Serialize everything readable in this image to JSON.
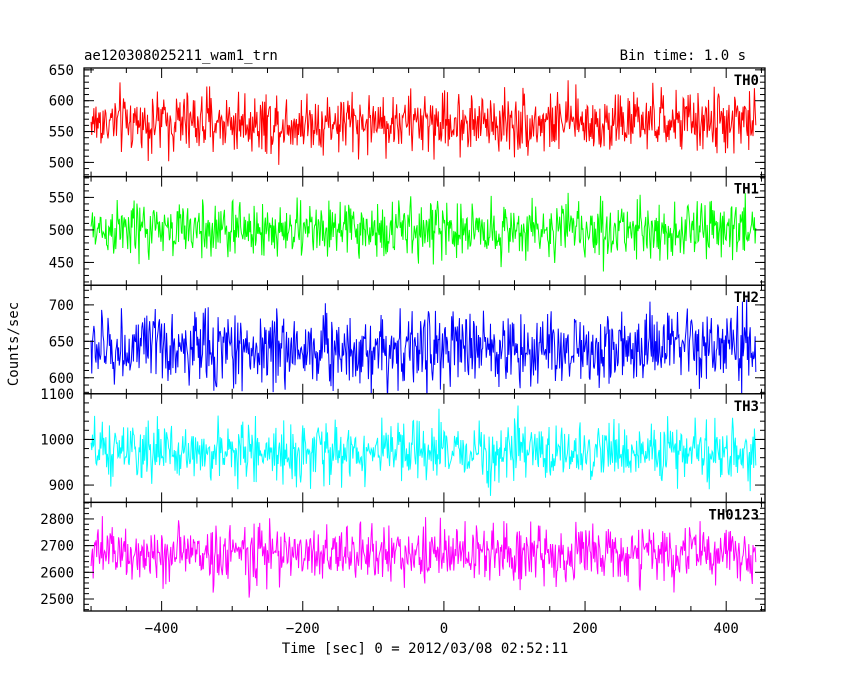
{
  "chart_data": {
    "type": "line",
    "title_left": "ae120308025211_wam1_trn",
    "title_right": "Bin time: 1.0 s",
    "xlabel": "Time [sec] 0 = 2012/03/08 02:52:11",
    "ylabel": "Counts/sec",
    "xlim": [
      -510,
      455
    ],
    "data_x_range": [
      -500,
      442
    ],
    "x_ticks": [
      -400,
      -200,
      0,
      200,
      400
    ],
    "x_minor_step": 50,
    "grid": false,
    "panels": [
      {
        "name": "TH0",
        "color": "#ff0000",
        "ylim": [
          477,
          653
        ],
        "y_ticks": [
          500,
          550,
          600,
          650
        ],
        "y_minor_step": 10,
        "mean": 565,
        "amplitude": 25
      },
      {
        "name": "TH1",
        "color": "#00ff00",
        "ylim": [
          415,
          582
        ],
        "y_ticks": [
          450,
          500,
          550
        ],
        "y_minor_step": 10,
        "mean": 500,
        "amplitude": 22
      },
      {
        "name": "TH2",
        "color": "#0000ff",
        "ylim": [
          578,
          727
        ],
        "y_ticks": [
          600,
          650,
          700
        ],
        "y_minor_step": 10,
        "mean": 640,
        "amplitude": 26
      },
      {
        "name": "TH3",
        "color": "#00ffff",
        "ylim": [
          862,
          1100
        ],
        "y_ticks": [
          900,
          1000,
          1100
        ],
        "y_minor_step": 20,
        "mean": 972,
        "amplitude": 32
      },
      {
        "name": "TH0123",
        "color": "#ff00ff",
        "ylim": [
          2455,
          2862
        ],
        "y_ticks": [
          2500,
          2600,
          2700,
          2800
        ],
        "y_minor_step": 20,
        "mean": 2670,
        "amplitude": 55
      }
    ]
  }
}
